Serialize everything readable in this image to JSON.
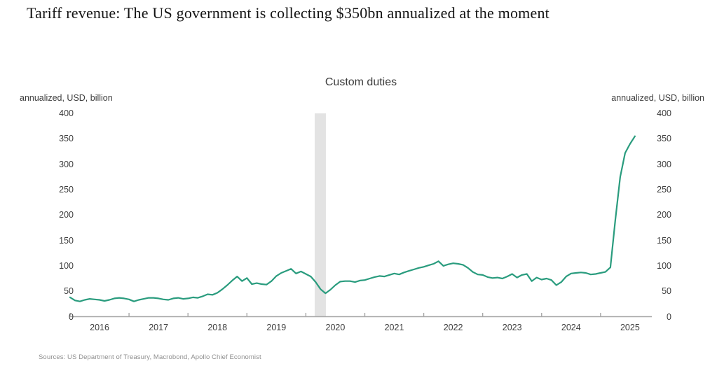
{
  "page": {
    "title": "Tariff revenue: The US government is collecting $350bn annualized at the moment",
    "sources": "Sources: US Department of Treasury, Macrobond, Apollo Chief Economist"
  },
  "chart_data": {
    "type": "line",
    "title": "Custom duties",
    "left_axis_label": "annualized, USD, billion",
    "right_axis_label": "annualized, USD, billion",
    "ylim": [
      0,
      400
    ],
    "y_ticks": [
      400,
      350,
      300,
      250,
      200,
      150,
      100,
      50,
      0
    ],
    "x_tick_labels": [
      "2016",
      "2017",
      "2018",
      "2019",
      "2020",
      "2021",
      "2022",
      "2023",
      "2024",
      "2025"
    ],
    "x_range": [
      2016.0,
      2025.87
    ],
    "grid": false,
    "legend": false,
    "shaded_band": {
      "x_start": 2020.15,
      "x_end": 2020.34,
      "color": "#e3e3e3"
    },
    "axis_color": "#a8a8a8",
    "series": [
      {
        "name": "Custom duties",
        "color": "#2a9c7e",
        "start": "2016-01",
        "frequency": "monthly",
        "values": [
          38,
          32,
          30,
          33,
          35,
          34,
          33,
          31,
          33,
          36,
          37,
          36,
          34,
          30,
          33,
          35,
          37,
          37,
          36,
          34,
          33,
          36,
          37,
          35,
          36,
          38,
          37,
          40,
          44,
          43,
          47,
          54,
          62,
          71,
          79,
          70,
          76,
          64,
          66,
          64,
          63,
          70,
          80,
          86,
          90,
          94,
          85,
          89,
          84,
          79,
          68,
          54,
          46,
          53,
          62,
          69,
          70,
          70,
          68,
          71,
          72,
          75,
          78,
          80,
          79,
          82,
          85,
          83,
          87,
          90,
          93,
          96,
          98,
          101,
          104,
          109,
          100,
          103,
          105,
          104,
          102,
          96,
          88,
          83,
          82,
          78,
          76,
          77,
          75,
          79,
          84,
          77,
          82,
          84,
          70,
          77,
          73,
          75,
          72,
          62,
          68,
          79,
          85,
          86,
          87,
          86,
          83,
          84,
          86,
          88,
          97,
          190,
          275,
          322,
          340,
          355
        ]
      }
    ]
  }
}
